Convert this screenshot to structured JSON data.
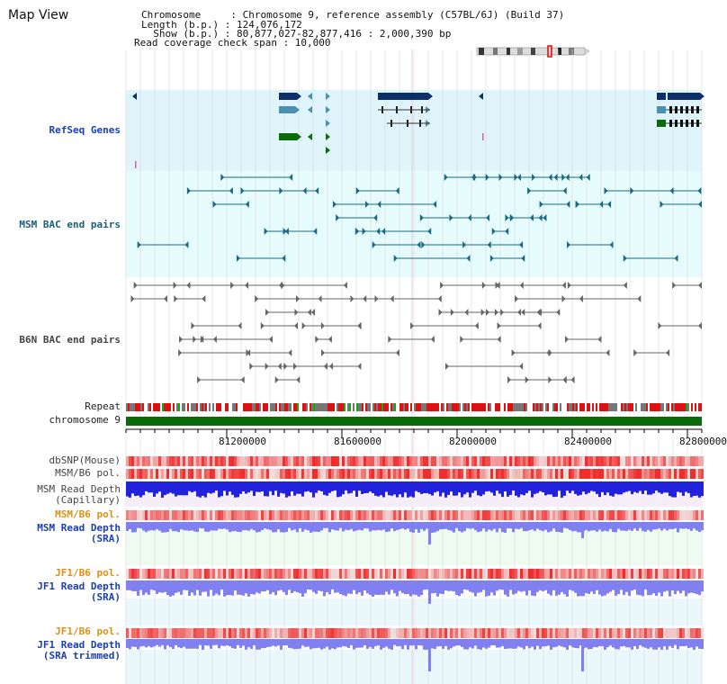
{
  "title": "Map View",
  "header": {
    "lines": [
      "Chromosome     : Chromosome 9, reference assembly (C57BL/6J) (Build 37)",
      "Length (b.p.) : 124,076,172",
      "  Show (b.p.) : 80,877,027-82,877,416 : 2,000,390 bp",
      "Read coverage check span : 10,000"
    ]
  },
  "tracks": {
    "refseq": "RefSeq Genes",
    "msm_bac": "MSM BAC end pairs",
    "b6n_bac": "B6N BAC end pairs",
    "repeat": "Repeat",
    "chromosome": "chromosome 9",
    "dbsnp": "dbSNP(Mouse)",
    "msm_b6_pol": "MSM/B6 pol.",
    "msm_depth_cap_1": "MSM Read Depth",
    "msm_depth_cap_2": "(Capillary)",
    "msm_b6_pol_2": "MSM/B6 pol.",
    "msm_depth_sra_1": "MSM Read Depth",
    "msm_depth_sra_2": "(SRA)",
    "jf1_b6_pol": "JF1/B6 pol.",
    "jf1_depth_sra_1": "JF1 Read Depth",
    "jf1_depth_sra_2": "(SRA)",
    "jf1_b6_pol_2": "JF1/B6 pol.",
    "jf1_depth_trim_1": "JF1 Read Depth",
    "jf1_depth_trim_2": "(SRA trimmed)"
  },
  "axis": {
    "ticks": [
      "81200000",
      "81600000",
      "82000000",
      "82400000",
      "82800000"
    ]
  },
  "colors": {
    "refseq_bg": "#dff4fb",
    "bac_bg": "#e6fbfb",
    "gene_navy": "#0c2f6a",
    "gene_teal": "#4a90b0",
    "gene_green": "#0b6b0b",
    "chromosome": "#0b6b0b",
    "depth_blue": "#2222dd",
    "depth_light": "#8080f0"
  }
}
